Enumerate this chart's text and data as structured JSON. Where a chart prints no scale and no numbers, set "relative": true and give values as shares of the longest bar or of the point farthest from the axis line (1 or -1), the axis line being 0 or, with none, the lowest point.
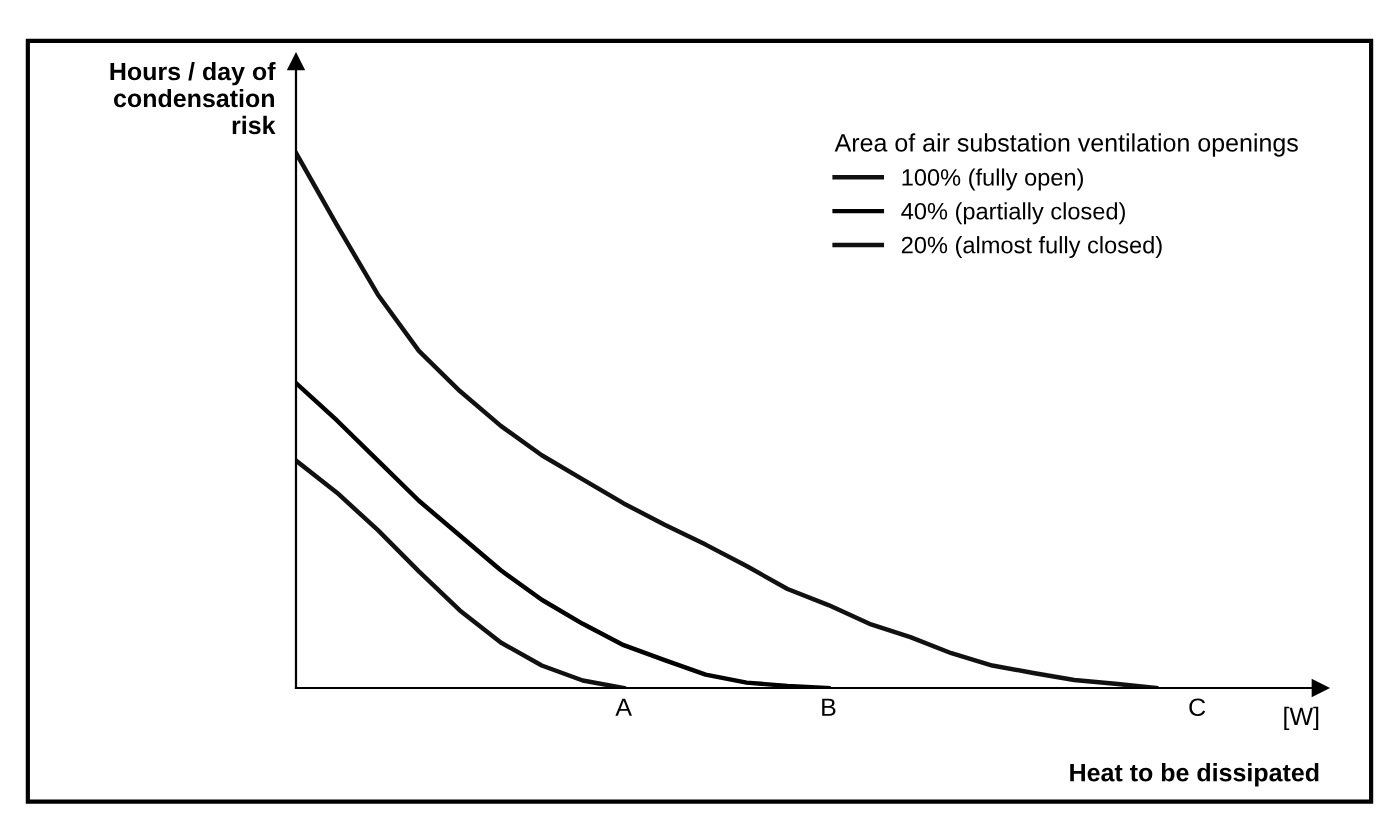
{
  "chart_data": {
    "type": "line",
    "relative": true,
    "ylabel": "Hours / day of\ncondensation\nrisk",
    "xlabel": "Heat to be dissipated",
    "legend_title": "Area of air substation ventilation openings",
    "annotations": [
      "[W]"
    ],
    "categories": [
      null,
      null,
      null,
      null,
      null,
      null,
      null,
      null,
      "A",
      null,
      null,
      null,
      null,
      "B",
      null,
      null,
      null,
      null,
      null,
      null,
      null,
      null,
      "C",
      null,
      null,
      null
    ],
    "tick_labels": "x",
    "grid": false,
    "legend": "top right",
    "marker": "none",
    "line_style": "solid",
    "series": [
      {
        "name": "100% (fully open)",
        "color": "#111111",
        "values": [
          1,
          0.865,
          0.735,
          0.63,
          0.555,
          0.49,
          0.435,
          0.39,
          0.345,
          0.305,
          0.268,
          0.228,
          0.185,
          0.155,
          0.12,
          0.095,
          0.065,
          0.042,
          0.028,
          0.015,
          0.008,
          0,
          null,
          null,
          null,
          null
        ]
      },
      {
        "name": "40% (partially closed)",
        "color": "#000000",
        "values": [
          0.57,
          0.5,
          0.425,
          0.35,
          0.285,
          0.22,
          0.165,
          0.12,
          0.08,
          0.052,
          0.025,
          0.01,
          0.004,
          0,
          null,
          null,
          null,
          null,
          null,
          null,
          null,
          null,
          null,
          null,
          null,
          null
        ]
      },
      {
        "name": "20% (almost fully closed)",
        "color": "#111111",
        "values": [
          0.425,
          0.365,
          0.295,
          0.218,
          0.145,
          0.085,
          0.042,
          0.014,
          0,
          null,
          null,
          null,
          null,
          null,
          null,
          null,
          null,
          null,
          null,
          null,
          null,
          null,
          null,
          null,
          null,
          null
        ]
      }
    ]
  }
}
